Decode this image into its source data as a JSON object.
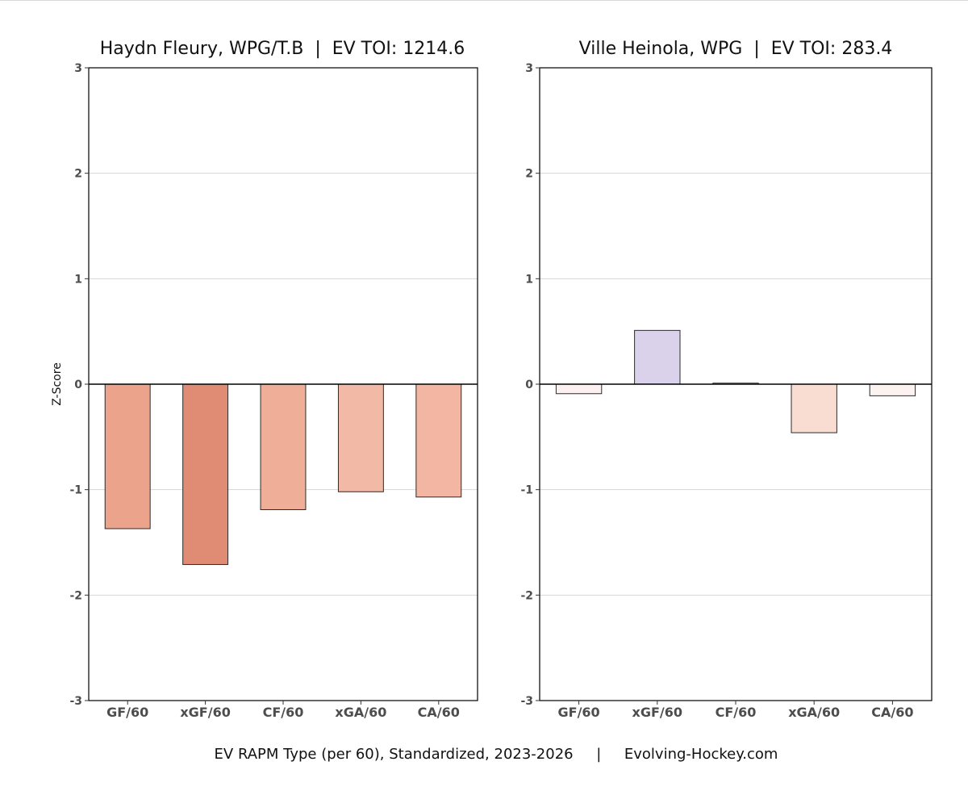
{
  "chart_data": [
    {
      "type": "bar",
      "title": "Haydn Fleury, WPG/T.B  |  EV TOI: 1214.6",
      "categories": [
        "GF/60",
        "xGF/60",
        "CF/60",
        "xGA/60",
        "CA/60"
      ],
      "values": [
        -1.37,
        -1.71,
        -1.19,
        -1.02,
        -1.07
      ],
      "colors": [
        "#eba48b",
        "#e08b74",
        "#efae98",
        "#f2b9a6",
        "#f2b6a3"
      ],
      "ylabel": "Z-Score",
      "ylim": [
        -3,
        3
      ],
      "yticks": [
        3,
        2,
        1,
        0,
        -1,
        -2,
        -3
      ],
      "ytick_labels": [
        "3",
        "2",
        "1",
        "0",
        "-1",
        "-2",
        "-3"
      ],
      "grid": true
    },
    {
      "type": "bar",
      "title": "Ville Heinola, WPG  |  EV TOI: 283.4",
      "categories": [
        "GF/60",
        "xGF/60",
        "CF/60",
        "xGA/60",
        "CA/60"
      ],
      "values": [
        -0.09,
        0.51,
        0.01,
        -0.46,
        -0.11
      ],
      "colors": [
        "#fcf1f0",
        "#d9d2ea",
        "#fbf7f8",
        "#f9dcd2",
        "#fcf3f1"
      ],
      "ylabel": "",
      "ylim": [
        -3,
        3
      ],
      "yticks": [
        3,
        2,
        1,
        0,
        -1,
        -2,
        -3
      ],
      "ytick_labels": [
        "3",
        "2",
        "1",
        "0",
        "-1",
        "-2",
        "-3"
      ],
      "grid": true
    }
  ],
  "caption": "EV RAPM Type (per 60), Standardized, 2023-2026     |     Evolving-Hockey.com"
}
